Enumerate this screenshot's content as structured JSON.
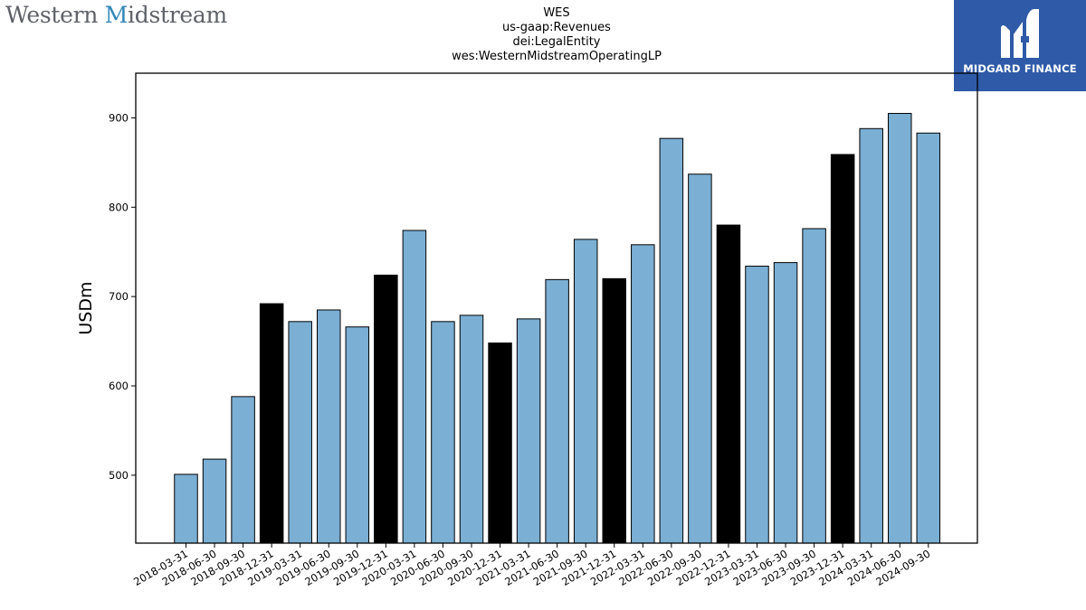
{
  "header": {
    "company_logo_text_1": "Western ",
    "company_logo_text_2": "M",
    "company_logo_text_3": "idstream",
    "brand_logo_text": "MIDGARD FINANCE"
  },
  "chart_data": {
    "type": "bar",
    "title": [
      "WES",
      "us-gaap:Revenues",
      "dei:LegalEntity",
      "wes:WesternMidstreamOperatingLP"
    ],
    "xlabel": "",
    "ylabel": "USDm",
    "ylim": [
      424,
      950
    ],
    "yticks": [
      500,
      600,
      700,
      800,
      900
    ],
    "grid": false,
    "colors": {
      "quarter": "#7bafd4",
      "year_end": "#000000",
      "edge": "#000000"
    },
    "categories": [
      "2018-03-31",
      "2018-06-30",
      "2018-09-30",
      "2018-12-31",
      "2019-03-31",
      "2019-06-30",
      "2019-09-30",
      "2019-12-31",
      "2020-03-31",
      "2020-06-30",
      "2020-09-30",
      "2020-12-31",
      "2021-03-31",
      "2021-06-30",
      "2021-09-30",
      "2021-12-31",
      "2022-03-31",
      "2022-06-30",
      "2022-09-30",
      "2022-12-31",
      "2023-03-31",
      "2023-06-30",
      "2023-09-30",
      "2023-12-31",
      "2024-03-31",
      "2024-06-30",
      "2024-09-30"
    ],
    "values": [
      501,
      518,
      588,
      692,
      672,
      685,
      666,
      724,
      774,
      672,
      679,
      648,
      675,
      719,
      764,
      720,
      758,
      877,
      837,
      780,
      734,
      738,
      776,
      859,
      888,
      905,
      883
    ],
    "highlight": [
      false,
      false,
      false,
      true,
      false,
      false,
      false,
      true,
      false,
      false,
      false,
      true,
      false,
      false,
      false,
      true,
      false,
      false,
      false,
      true,
      false,
      false,
      false,
      true,
      false,
      false,
      false
    ]
  }
}
